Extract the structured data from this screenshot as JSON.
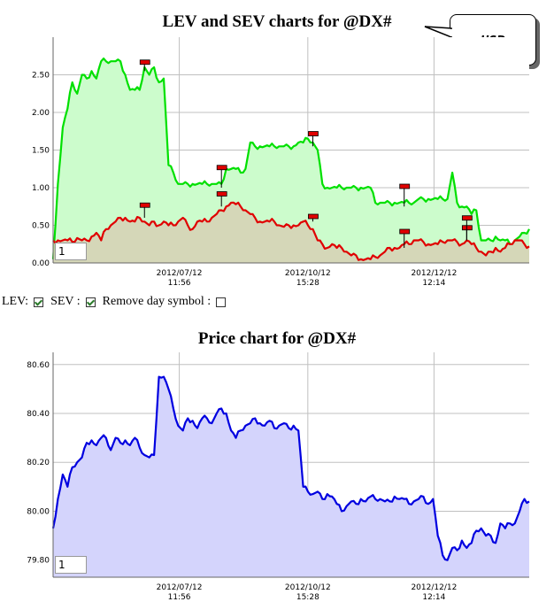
{
  "chart_data": [
    {
      "type": "area",
      "title": "LEV and SEV charts for @DX#",
      "annotation": "USD",
      "x_tick_labels": [
        [
          "2012/07/12",
          "11:56"
        ],
        [
          "2012/10/12",
          "15:28"
        ],
        [
          "2012/12/12",
          "12:14"
        ]
      ],
      "yticks": [
        "0.00",
        "0.50",
        "1.00",
        "1.50",
        "2.00",
        "2.50"
      ],
      "ylim": [
        0,
        3.0
      ],
      "series": [
        {
          "color": "#00e000",
          "values": [
            0.05,
            1.05,
            1.8,
            2.05,
            2.4,
            2.25,
            2.5,
            2.45,
            2.55,
            2.45,
            2.68,
            2.68,
            2.68,
            2.68,
            2.68,
            2.5,
            2.3,
            2.3,
            2.3,
            2.6,
            2.5,
            2.6,
            2.4,
            2.45,
            1.3,
            1.2,
            1.05,
            1.05,
            1.05,
            1.05,
            1.05,
            1.05,
            1.05,
            1.05,
            1.05,
            1.05,
            1.25,
            1.25,
            1.25,
            1.2,
            1.25,
            1.6,
            1.55,
            1.55,
            1.55,
            1.55,
            1.55,
            1.55,
            1.55,
            1.55,
            1.55,
            1.6,
            1.6,
            1.65,
            1.6,
            1.5,
            1.05,
            1.0,
            1.0,
            1.0,
            1.0,
            1.0,
            1.0,
            1.0,
            1.0,
            1.0,
            1.0,
            0.8,
            0.8,
            0.8,
            0.8,
            0.8,
            0.8,
            0.8,
            0.8,
            0.8,
            0.85,
            0.85,
            0.85,
            0.85,
            0.85,
            0.85,
            0.85,
            1.2,
            0.8,
            0.75,
            0.75,
            0.65,
            0.7,
            0.3,
            0.3,
            0.3,
            0.35,
            0.3,
            0.3,
            0.25,
            0.3,
            0.35,
            0.4,
            0.45
          ]
        },
        {
          "color": "#e00000",
          "values": [
            0.3,
            0.3,
            0.3,
            0.3,
            0.28,
            0.33,
            0.3,
            0.3,
            0.35,
            0.4,
            0.3,
            0.45,
            0.5,
            0.55,
            0.6,
            0.6,
            0.55,
            0.55,
            0.6,
            0.55,
            0.5,
            0.55,
            0.5,
            0.55,
            0.5,
            0.5,
            0.55,
            0.6,
            0.5,
            0.45,
            0.55,
            0.55,
            0.55,
            0.6,
            0.65,
            0.7,
            0.75,
            0.8,
            0.78,
            0.75,
            0.7,
            0.65,
            0.6,
            0.55,
            0.55,
            0.55,
            0.55,
            0.5,
            0.48,
            0.5,
            0.5,
            0.5,
            0.55,
            0.5,
            0.45,
            0.3,
            0.25,
            0.2,
            0.25,
            0.2,
            0.2,
            0.15,
            0.1,
            0.1,
            0.05,
            0.05,
            0.05,
            0.08,
            0.1,
            0.15,
            0.2,
            0.2,
            0.2,
            0.25,
            0.25,
            0.3,
            0.3,
            0.28,
            0.25,
            0.25,
            0.25,
            0.28,
            0.3,
            0.3,
            0.28,
            0.25,
            0.3,
            0.25,
            0.2,
            0.15,
            0.1,
            0.15,
            0.2,
            0.15,
            0.2,
            0.25,
            0.3,
            0.3,
            0.25,
            0.22
          ]
        }
      ],
      "flags": [
        {
          "i": 19,
          "value": 2.55,
          "h": 0.1
        },
        {
          "i": 19,
          "value": 0.6,
          "h": 0.15
        },
        {
          "i": 35,
          "value": 1.0,
          "h": 0.25
        },
        {
          "i": 35,
          "value": 0.75,
          "h": 0.15
        },
        {
          "i": 54,
          "value": 1.55,
          "h": 0.15
        },
        {
          "i": 54,
          "value": 0.55,
          "h": 0.05
        },
        {
          "i": 73,
          "value": 0.75,
          "h": 0.25
        },
        {
          "i": 73,
          "value": 0.2,
          "h": 0.2
        },
        {
          "i": 86,
          "value": 0.3,
          "h": 0.15
        },
        {
          "i": 86,
          "value": 0.3,
          "h": 0.28
        }
      ],
      "zoom_value": "1"
    },
    {
      "type": "area",
      "title": "Price chart for @DX#",
      "x_tick_labels": [
        [
          "2012/07/12",
          "11:56"
        ],
        [
          "2012/10/12",
          "15:28"
        ],
        [
          "2012/12/12",
          "12:14"
        ]
      ],
      "yticks": [
        "79.80",
        "80.00",
        "80.20",
        "80.40",
        "80.60"
      ],
      "ylim": [
        79.73,
        80.65
      ],
      "series": [
        {
          "color": "#0000e0",
          "values": [
            79.93,
            80.05,
            80.15,
            80.1,
            80.18,
            80.2,
            80.22,
            80.28,
            80.29,
            80.27,
            80.3,
            80.3,
            80.25,
            80.3,
            80.28,
            80.29,
            80.27,
            80.3,
            80.26,
            80.23,
            80.22,
            80.23,
            80.55,
            80.55,
            80.5,
            80.42,
            80.35,
            80.33,
            80.38,
            80.37,
            80.34,
            80.38,
            80.38,
            80.36,
            80.4,
            80.42,
            80.4,
            80.33,
            80.3,
            80.33,
            80.35,
            80.36,
            80.38,
            80.36,
            80.35,
            80.37,
            80.34,
            80.35,
            80.36,
            80.34,
            80.35,
            80.33,
            80.1,
            80.08,
            80.07,
            80.08,
            80.05,
            80.07,
            80.06,
            80.03,
            80.0,
            80.02,
            80.04,
            80.03,
            80.05,
            80.04,
            80.06,
            80.05,
            80.05,
            80.04,
            80.04,
            80.06,
            80.05,
            80.05,
            80.03,
            80.04,
            80.05,
            80.06,
            80.03,
            80.05,
            79.9,
            79.82,
            79.8,
            79.85,
            79.84,
            79.88,
            79.85,
            79.87,
            79.92,
            79.93,
            79.9,
            79.9,
            79.87,
            79.95,
            79.93,
            79.95,
            79.95,
            80.0,
            80.05,
            80.04
          ]
        }
      ],
      "zoom_value": "1"
    }
  ],
  "controls": {
    "lev_label": "LEV:",
    "sev_label": "SEV :",
    "remove_label": "Remove day symbol :"
  },
  "colors": {
    "lev_fill": "#ccfccc",
    "sev_fill": "#d6d0b4",
    "price_fill": "#d4d4fc",
    "grid": "#c0c0c0"
  }
}
